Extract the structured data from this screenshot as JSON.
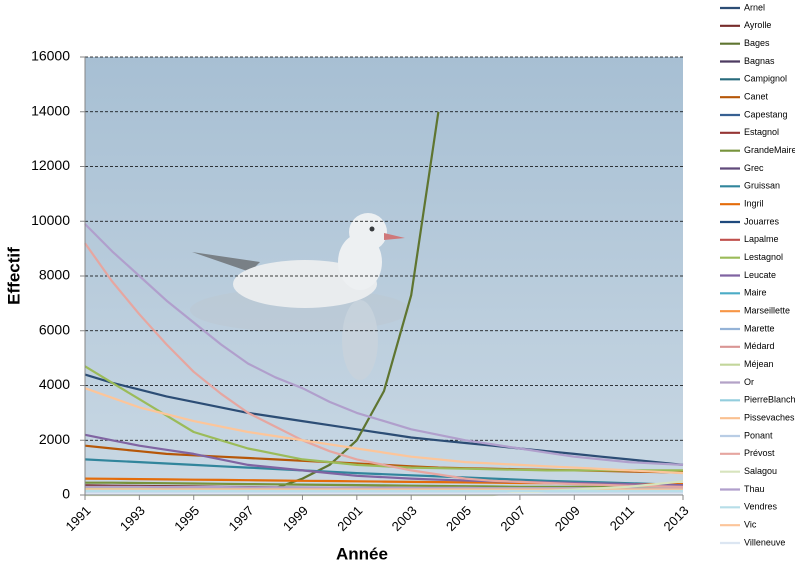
{
  "chart_data": {
    "type": "line",
    "y_label": "Effectif",
    "x_label": "Année",
    "x": [
      1991,
      1992,
      1993,
      1994,
      1995,
      1996,
      1997,
      1998,
      1999,
      2000,
      2001,
      2002,
      2003,
      2004,
      2005,
      2006,
      2007,
      2008,
      2009,
      2010,
      2011,
      2012,
      2013
    ],
    "xlim": [
      1991,
      2013
    ],
    "xticks": [
      1991,
      1993,
      1995,
      1997,
      1999,
      2001,
      2003,
      2005,
      2007,
      2009,
      2011,
      2013
    ],
    "ylim": [
      0,
      16000
    ],
    "yticks": [
      0,
      2000,
      4000,
      6000,
      8000,
      10000,
      12000,
      14000,
      16000
    ],
    "grid": true,
    "legend": "right",
    "series": [
      {
        "name": "Arnel",
        "color": "#2c4d75",
        "values": [
          4400,
          4100,
          3850,
          3600,
          3400,
          3200,
          3000,
          2850,
          2700,
          2550,
          2400,
          2250,
          2100,
          2000,
          1900,
          1800,
          1700,
          1600,
          1500,
          1400,
          1300,
          1200,
          1100
        ]
      },
      {
        "name": "Ayrolle",
        "color": "#772c2a",
        "values": [
          350,
          340,
          330,
          320,
          310,
          300,
          290,
          280,
          270,
          260,
          250,
          240,
          230,
          220,
          210,
          200,
          200,
          190,
          190,
          180,
          180,
          170,
          170
        ]
      },
      {
        "name": "Bages",
        "color": "#5f7530",
        "values": [
          null,
          null,
          null,
          null,
          null,
          null,
          50,
          250,
          600,
          1100,
          2000,
          3800,
          7300,
          14000,
          null,
          null,
          null,
          null,
          null,
          null,
          null,
          null,
          null
        ]
      },
      {
        "name": "Bagnas",
        "color": "#4d3b62",
        "values": [
          200,
          200,
          200,
          190,
          190,
          190,
          180,
          180,
          180,
          170,
          170,
          170,
          160,
          160,
          160,
          150,
          150,
          150,
          150,
          140,
          140,
          140,
          140
        ]
      },
      {
        "name": "Campignol",
        "color": "#276a7c",
        "values": [
          150,
          150,
          150,
          150,
          140,
          140,
          140,
          140,
          130,
          130,
          130,
          130,
          120,
          120,
          120,
          120,
          110,
          110,
          110,
          110,
          100,
          100,
          100
        ]
      },
      {
        "name": "Canet",
        "color": "#b65708",
        "values": [
          1800,
          1700,
          1600,
          1500,
          1450,
          1400,
          1350,
          1300,
          1250,
          1200,
          1150,
          1100,
          1050,
          1000,
          980,
          960,
          940,
          920,
          900,
          880,
          860,
          840,
          820
        ]
      },
      {
        "name": "Capestang",
        "color": "#376092",
        "values": [
          250,
          250,
          240,
          240,
          230,
          230,
          220,
          220,
          210,
          210,
          200,
          200,
          190,
          190,
          180,
          180,
          170,
          170,
          160,
          160,
          150,
          150,
          150
        ]
      },
      {
        "name": "Estagnol",
        "color": "#963634",
        "values": [
          100,
          100,
          100,
          100,
          100,
          90,
          90,
          90,
          90,
          90,
          80,
          80,
          80,
          80,
          80,
          70,
          70,
          70,
          70,
          70,
          60,
          60,
          60
        ]
      },
      {
        "name": "GrandeMaire",
        "color": "#77933c",
        "values": [
          450,
          450,
          440,
          430,
          420,
          410,
          400,
          390,
          380,
          370,
          360,
          350,
          340,
          330,
          320,
          310,
          300,
          300,
          300,
          300,
          300,
          300,
          300
        ]
      },
      {
        "name": "Grec",
        "color": "#604a7b",
        "values": [
          80,
          80,
          80,
          80,
          80,
          80,
          80,
          70,
          70,
          70,
          70,
          70,
          70,
          70,
          60,
          60,
          60,
          60,
          60,
          60,
          60,
          60,
          60
        ]
      },
      {
        "name": "Gruissan",
        "color": "#31859c",
        "values": [
          1300,
          1250,
          1200,
          1150,
          1100,
          1050,
          1000,
          950,
          900,
          850,
          800,
          760,
          720,
          680,
          640,
          600,
          560,
          520,
          490,
          460,
          430,
          400,
          380
        ]
      },
      {
        "name": "Ingril",
        "color": "#e46c0a",
        "values": [
          600,
          590,
          580,
          570,
          560,
          550,
          540,
          530,
          520,
          510,
          500,
          490,
          480,
          470,
          460,
          450,
          440,
          430,
          420,
          410,
          400,
          400,
          400
        ]
      },
      {
        "name": "Jouarres",
        "color": "#1f497d",
        "values": [
          100,
          100,
          100,
          100,
          100,
          100,
          100,
          100,
          100,
          100,
          100,
          100,
          100,
          100,
          100,
          100,
          100,
          100,
          100,
          100,
          100,
          100,
          100
        ]
      },
      {
        "name": "Lapalme",
        "color": "#c0504d",
        "values": [
          150,
          150,
          150,
          150,
          150,
          140,
          140,
          140,
          140,
          140,
          130,
          130,
          130,
          130,
          130,
          120,
          120,
          120,
          120,
          120,
          110,
          110,
          110
        ]
      },
      {
        "name": "Lestagnol",
        "color": "#9bbb59",
        "values": [
          4700,
          4100,
          3500,
          2900,
          2300,
          2000,
          1700,
          1500,
          1300,
          1200,
          1100,
          1050,
          1000,
          980,
          960,
          940,
          920,
          900,
          900,
          900,
          900,
          900,
          900
        ]
      },
      {
        "name": "Leucate",
        "color": "#8064a2",
        "values": [
          2200,
          2000,
          1800,
          1650,
          1500,
          1300,
          1100,
          1000,
          900,
          800,
          700,
          650,
          600,
          560,
          530,
          500,
          480,
          460,
          440,
          420,
          400,
          380,
          360
        ]
      },
      {
        "name": "Maire",
        "color": "#4bacc6",
        "values": [
          200,
          200,
          200,
          200,
          200,
          200,
          200,
          200,
          200,
          200,
          200,
          200,
          200,
          200,
          200,
          200,
          200,
          200,
          200,
          200,
          200,
          200,
          200
        ]
      },
      {
        "name": "Marseillette",
        "color": "#f79646",
        "values": [
          100,
          100,
          100,
          100,
          100,
          100,
          100,
          100,
          100,
          100,
          100,
          100,
          100,
          100,
          100,
          100,
          100,
          100,
          100,
          100,
          100,
          100,
          100
        ]
      },
      {
        "name": "Marette",
        "color": "#95b3d7",
        "values": [
          50,
          50,
          50,
          50,
          50,
          50,
          50,
          50,
          50,
          50,
          50,
          50,
          50,
          50,
          50,
          50,
          50,
          50,
          50,
          50,
          50,
          50,
          50
        ]
      },
      {
        "name": "Médard",
        "color": "#d99694",
        "values": [
          80,
          80,
          80,
          80,
          80,
          80,
          80,
          80,
          80,
          80,
          80,
          80,
          80,
          80,
          80,
          80,
          80,
          80,
          80,
          80,
          80,
          80,
          80
        ]
      },
      {
        "name": "Méjean",
        "color": "#c3d69b",
        "values": [
          250,
          250,
          250,
          250,
          250,
          250,
          250,
          250,
          250,
          250,
          250,
          250,
          250,
          250,
          250,
          250,
          250,
          250,
          250,
          250,
          250,
          250,
          250
        ]
      },
      {
        "name": "Or",
        "color": "#b3a2c7",
        "values": [
          300,
          300,
          300,
          290,
          290,
          290,
          280,
          280,
          280,
          270,
          270,
          270,
          260,
          260,
          260,
          250,
          250,
          250,
          240,
          240,
          240,
          230,
          230
        ]
      },
      {
        "name": "PierreBlanche",
        "color": "#93cddd",
        "values": [
          150,
          150,
          150,
          150,
          150,
          150,
          150,
          150,
          150,
          150,
          150,
          150,
          150,
          150,
          150,
          150,
          150,
          150,
          150,
          150,
          150,
          150,
          150
        ]
      },
      {
        "name": "Pissevaches",
        "color": "#fac090",
        "values": [
          200,
          200,
          200,
          200,
          200,
          200,
          200,
          200,
          200,
          200,
          200,
          200,
          200,
          200,
          200,
          200,
          200,
          200,
          200,
          200,
          200,
          200,
          200
        ]
      },
      {
        "name": "Ponant",
        "color": "#b9cde5",
        "values": [
          100,
          100,
          100,
          100,
          100,
          100,
          100,
          100,
          100,
          100,
          100,
          100,
          100,
          100,
          100,
          100,
          100,
          100,
          100,
          100,
          100,
          100,
          100
        ]
      },
      {
        "name": "Prévost",
        "color": "#e6a6a0",
        "values": [
          9200,
          7800,
          6600,
          5500,
          4500,
          3700,
          3000,
          2500,
          2000,
          1600,
          1300,
          1100,
          900,
          750,
          600,
          520,
          480,
          440,
          400,
          370,
          340,
          320,
          300
        ]
      },
      {
        "name": "Salagou",
        "color": "#d7e4bd",
        "values": [
          0,
          0,
          0,
          0,
          0,
          0,
          0,
          0,
          0,
          0,
          0,
          0,
          0,
          0,
          0,
          0,
          100,
          150,
          200,
          250,
          300,
          400,
          500
        ]
      },
      {
        "name": "Thau",
        "color": "#b09fcc",
        "values": [
          9900,
          8900,
          8000,
          7100,
          6300,
          5500,
          4800,
          4300,
          3900,
          3400,
          3000,
          2700,
          2400,
          2200,
          2000,
          1850,
          1700,
          1550,
          1400,
          1300,
          1200,
          1150,
          1100
        ]
      },
      {
        "name": "Vendres",
        "color": "#b7dee8",
        "values": [
          150,
          150,
          150,
          150,
          150,
          150,
          150,
          150,
          150,
          150,
          150,
          150,
          150,
          150,
          150,
          150,
          150,
          150,
          150,
          150,
          150,
          150,
          150
        ]
      },
      {
        "name": "Vic",
        "color": "#fcc59a",
        "values": [
          3900,
          3550,
          3200,
          2950,
          2700,
          2500,
          2300,
          2150,
          2000,
          1850,
          1700,
          1550,
          1400,
          1300,
          1200,
          1150,
          1100,
          1050,
          1000,
          950,
          900,
          850,
          800
        ]
      },
      {
        "name": "Villeneuve",
        "color": "#dce6f2",
        "values": [
          50,
          50,
          50,
          50,
          50,
          50,
          50,
          50,
          50,
          50,
          50,
          50,
          50,
          50,
          50,
          50,
          50,
          50,
          50,
          50,
          50,
          50,
          50
        ]
      }
    ]
  }
}
